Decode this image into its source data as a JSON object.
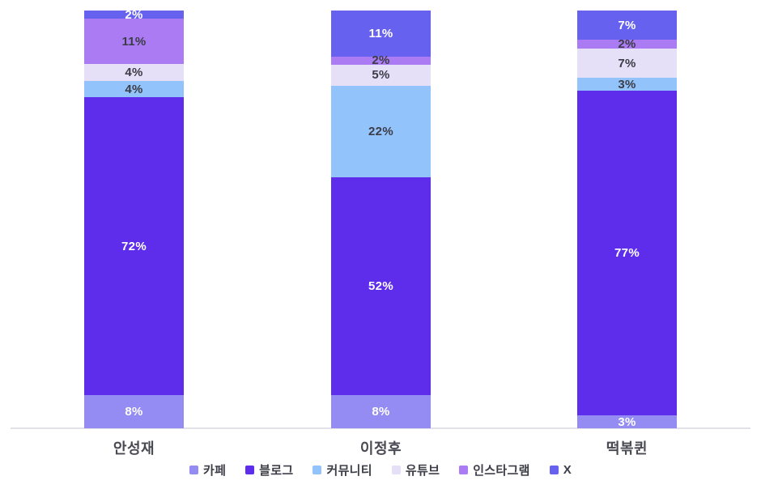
{
  "chart_data": {
    "type": "bar",
    "subtype": "stacked-vertical",
    "title": "",
    "xlabel": "",
    "ylabel": "",
    "value_suffix": "%",
    "grid": false,
    "legend_position": "bottom",
    "categories": [
      "안성재",
      "이정후",
      "떡볶퀸"
    ],
    "series": [
      {
        "name": "카페",
        "color": "#948cf2",
        "label_color": "#ffffff",
        "values": [
          8,
          8,
          3
        ]
      },
      {
        "name": "블로그",
        "color": "#5e2dec",
        "label_color": "#ffffff",
        "values": [
          72,
          52,
          77
        ]
      },
      {
        "name": "커뮤니티",
        "color": "#93c3fb",
        "label_color": "#3c3c46",
        "values": [
          4,
          22,
          3
        ]
      },
      {
        "name": "유튜브",
        "color": "#e5dff8",
        "label_color": "#3c3c46",
        "values": [
          4,
          5,
          7
        ]
      },
      {
        "name": "인스타그램",
        "color": "#aa7bf3",
        "label_color": "#3c3c46",
        "values": [
          11,
          2,
          2
        ]
      },
      {
        "name": "X",
        "color": "#6662ef",
        "label_color": "#ffffff",
        "values": [
          2,
          11,
          7
        ]
      }
    ],
    "stack_order_bottom_to_top": [
      "카페",
      "블로그",
      "커뮤니티",
      "유튜브",
      "인스타그램",
      "X"
    ],
    "axis_line_color": "#e1e1e7",
    "category_label_color": "#4a4a53",
    "legend_text_color": "#3e3e48",
    "background_color": "#ffffff"
  }
}
